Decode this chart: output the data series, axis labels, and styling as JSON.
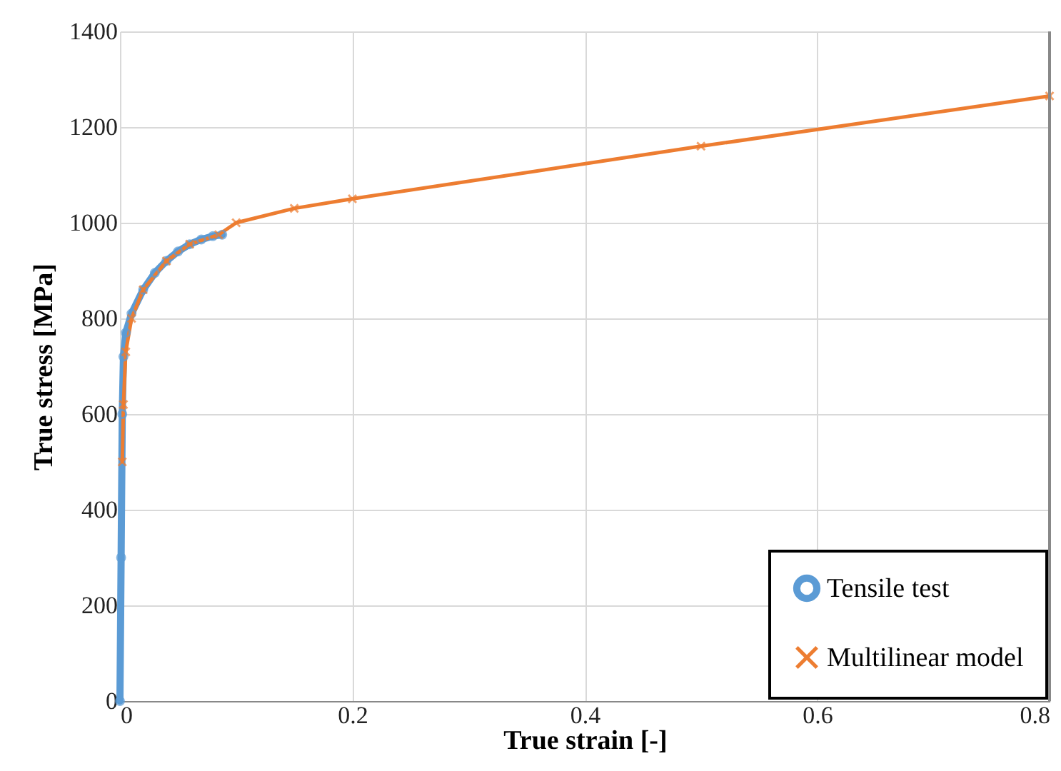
{
  "chart_data": {
    "type": "line",
    "xlabel": "True strain [-]",
    "ylabel": "True stress [MPa]",
    "xlim": [
      0,
      0.8
    ],
    "xticks": [
      0,
      0.2,
      0.4,
      0.6,
      0.8
    ],
    "ylim": [
      0,
      1400
    ],
    "yticks": [
      0,
      200,
      400,
      600,
      800,
      1000,
      1200,
      1400
    ],
    "grid": true,
    "legend": "bottom right",
    "line_style": "solid",
    "series": [
      {
        "name": "Tensile test",
        "color": "#5b9bd5",
        "marker": "circle",
        "x": [
          0,
          0.001,
          0.002,
          0.003,
          0.005,
          0.01,
          0.02,
          0.03,
          0.04,
          0.05,
          0.06,
          0.07,
          0.08,
          0.088
        ],
        "values": [
          0,
          300,
          600,
          720,
          770,
          810,
          860,
          895,
          920,
          940,
          955,
          965,
          972,
          975
        ]
      },
      {
        "name": "Multilinear model",
        "color": "#ed7d31",
        "marker": "cross",
        "x": [
          0.002,
          0.003,
          0.005,
          0.01,
          0.02,
          0.04,
          0.06,
          0.085,
          0.1,
          0.15,
          0.2,
          0.5,
          0.8
        ],
        "values": [
          500,
          620,
          730,
          800,
          860,
          920,
          955,
          975,
          1000,
          1030,
          1050,
          1160,
          1265
        ]
      }
    ]
  }
}
